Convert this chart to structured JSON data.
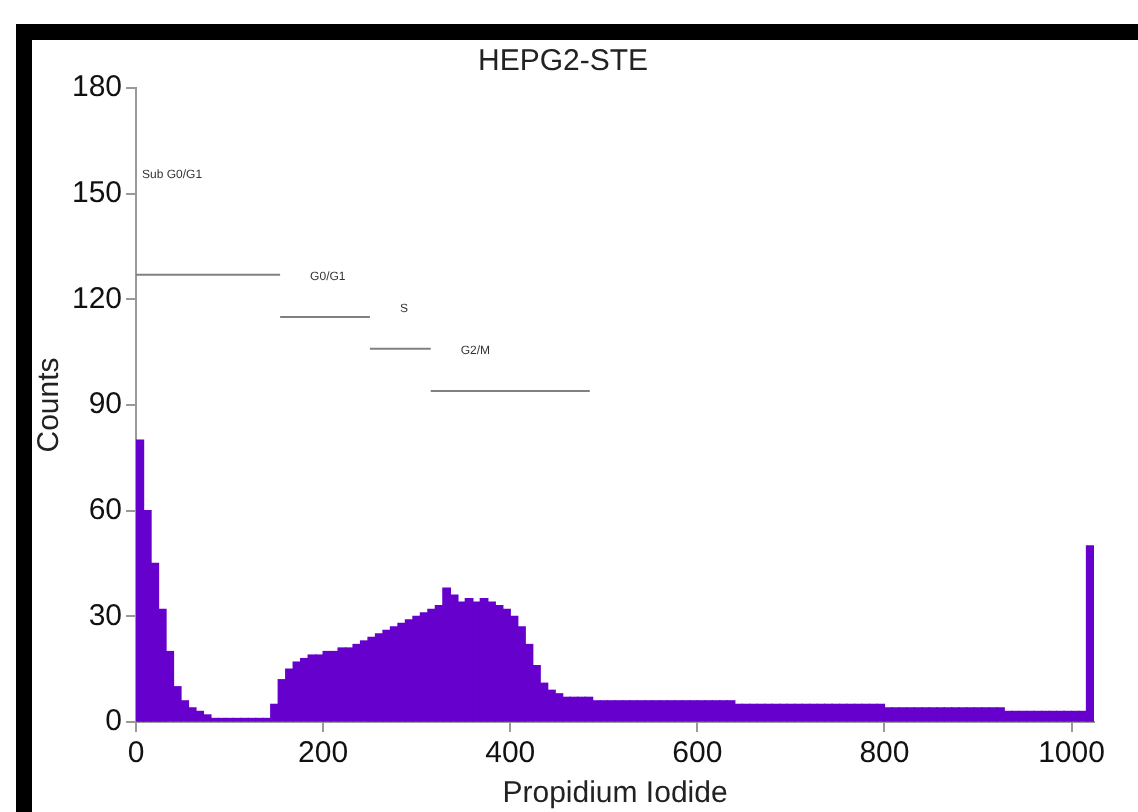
{
  "chart_data": {
    "type": "histogram",
    "title": "HEPG2-STE",
    "xlabel": "Propidium Iodide",
    "ylabel": "Counts",
    "bins": [
      0,
      8,
      16,
      24,
      32,
      40,
      48,
      56,
      64,
      72,
      80,
      88,
      96,
      104,
      112,
      120,
      128,
      136,
      144,
      152,
      160,
      168,
      176,
      184,
      192,
      200,
      208,
      216,
      224,
      232,
      240,
      248,
      256,
      264,
      272,
      280,
      288,
      296,
      304,
      312,
      320,
      328,
      336,
      344,
      352,
      360,
      368,
      376,
      384,
      392,
      400,
      408,
      416,
      424,
      432,
      440,
      448,
      456,
      464,
      472,
      480,
      488,
      496,
      504,
      512,
      520,
      528,
      536,
      544,
      552,
      560,
      568,
      576,
      584,
      592,
      600,
      608,
      616,
      624,
      632,
      640,
      648,
      656,
      664,
      672,
      680,
      688,
      696,
      704,
      712,
      720,
      728,
      736,
      744,
      752,
      760,
      768,
      776,
      784,
      792,
      800,
      808,
      816,
      824,
      832,
      840,
      848,
      856,
      864,
      872,
      880,
      888,
      896,
      904,
      912,
      920,
      928,
      936,
      944,
      952,
      960,
      968,
      976,
      984,
      992,
      1000,
      1008,
      1016,
      1024
    ],
    "series": [
      {
        "color": "#6600cc",
        "values": [
          80,
          60,
          45,
          32,
          20,
          10,
          6,
          4,
          3,
          2,
          1,
          1,
          1,
          1,
          1,
          1,
          1,
          1,
          5,
          12,
          15,
          17,
          18,
          19,
          19,
          20,
          20,
          21,
          21,
          22,
          23,
          24,
          25,
          26,
          27,
          28,
          29,
          30,
          31,
          32,
          33,
          38,
          36,
          34,
          35,
          34,
          35,
          34,
          33,
          32,
          30,
          27,
          22,
          16,
          11,
          9,
          8,
          7,
          7,
          7,
          7,
          6,
          6,
          6,
          6,
          6,
          6,
          6,
          6,
          6,
          6,
          6,
          6,
          6,
          6,
          6,
          6,
          6,
          6,
          6,
          5,
          5,
          5,
          5,
          5,
          5,
          5,
          5,
          5,
          5,
          5,
          5,
          5,
          5,
          5,
          5,
          5,
          5,
          5,
          5,
          4,
          4,
          4,
          4,
          4,
          4,
          4,
          4,
          4,
          4,
          4,
          4,
          4,
          4,
          4,
          4,
          3,
          3,
          3,
          3,
          3,
          3,
          3,
          3,
          3,
          3,
          3,
          50
        ]
      },
      {
        "type": "line",
        "color": "#808080",
        "x": [
          0,
          154
        ],
        "values": [
          127,
          127
        ]
      },
      {
        "type": "line",
        "color": "#808080",
        "x": [
          154,
          250
        ],
        "values": [
          115,
          115
        ]
      },
      {
        "type": "line",
        "color": "#808080",
        "x": [
          250,
          315
        ],
        "values": [
          106,
          106
        ]
      },
      {
        "type": "line",
        "color": "#808080",
        "x": [
          315,
          485
        ],
        "values": [
          94,
          94
        ]
      }
    ],
    "marker": "none",
    "xlim": [
      0,
      1024
    ],
    "xticks": [
      0,
      200,
      400,
      600,
      800,
      1000
    ],
    "ylim": [
      0,
      180
    ],
    "yticks": [
      0,
      30,
      60,
      90,
      120,
      150,
      180
    ],
    "grid": false,
    "legend": false,
    "annotations": [
      "Sub G0/G1",
      "G0/G1",
      "S",
      "G2/M"
    ]
  }
}
